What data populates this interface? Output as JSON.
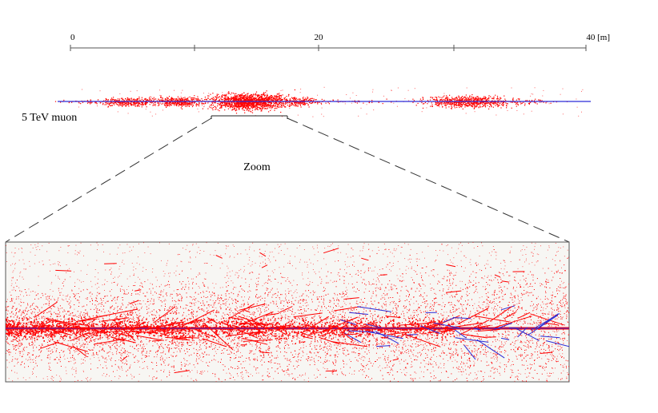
{
  "scale": {
    "ticks": [
      "0",
      "20",
      "40 [m]"
    ]
  },
  "labels": {
    "particle": "5 TeV muon",
    "zoom": "Zoom"
  },
  "colors": {
    "shower": "#ff0000",
    "track": "#2b2bd6",
    "axis": "#555555",
    "zoom_box_fill": "#f7f6f3"
  }
}
